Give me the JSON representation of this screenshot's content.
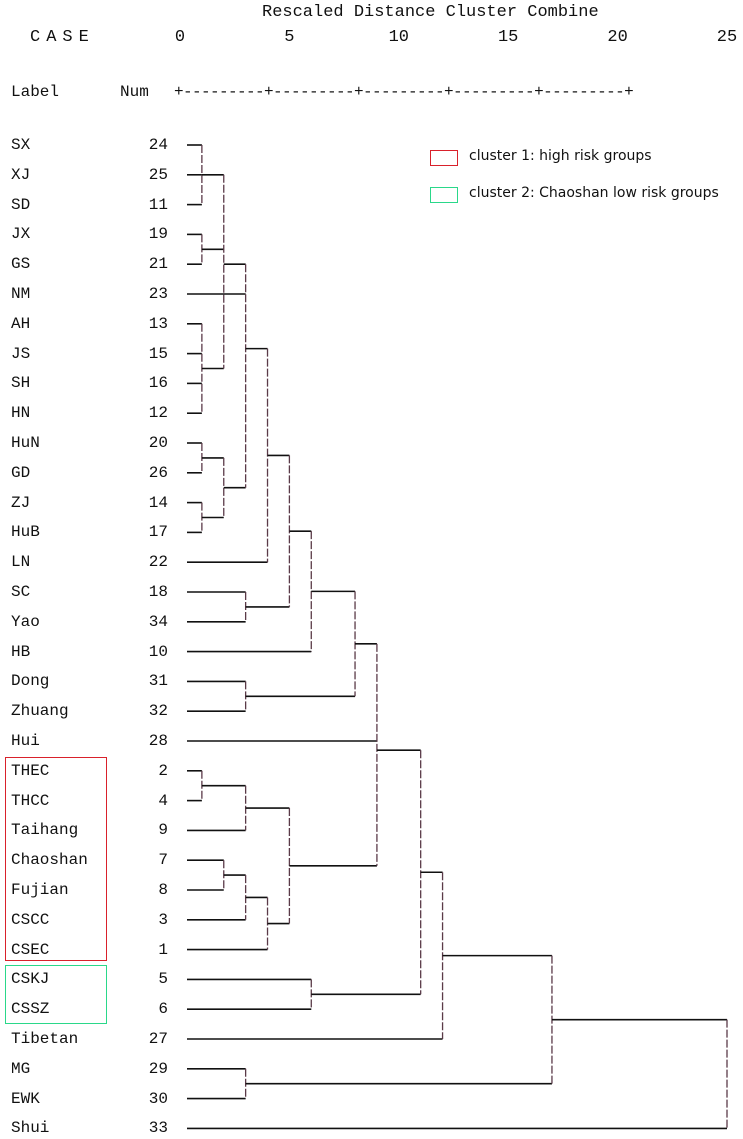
{
  "title": "Rescaled Distance Cluster Combine",
  "header": {
    "case": "CASE",
    "label": "Label",
    "num": "Num",
    "axis_rule": "+---------+---------+---------+---------+---------+"
  },
  "axis": {
    "ticks": [
      0,
      5,
      10,
      15,
      20,
      25
    ],
    "range": [
      0,
      25
    ]
  },
  "cases": [
    {
      "label": "SX",
      "num": "24"
    },
    {
      "label": "XJ",
      "num": "25"
    },
    {
      "label": "SD",
      "num": "11"
    },
    {
      "label": "JX",
      "num": "19"
    },
    {
      "label": "GS",
      "num": "21"
    },
    {
      "label": "NM",
      "num": "23"
    },
    {
      "label": "AH",
      "num": "13"
    },
    {
      "label": "JS",
      "num": "15"
    },
    {
      "label": "SH",
      "num": "16"
    },
    {
      "label": "HN",
      "num": "12"
    },
    {
      "label": "HuN",
      "num": "20"
    },
    {
      "label": "GD",
      "num": "26"
    },
    {
      "label": "ZJ",
      "num": "14"
    },
    {
      "label": "HuB",
      "num": "17"
    },
    {
      "label": "LN",
      "num": "22"
    },
    {
      "label": "SC",
      "num": "18"
    },
    {
      "label": "Yao",
      "num": "34"
    },
    {
      "label": "HB",
      "num": "10"
    },
    {
      "label": "Dong",
      "num": "31"
    },
    {
      "label": "Zhuang",
      "num": "32"
    },
    {
      "label": "Hui",
      "num": "28"
    },
    {
      "label": "THEC",
      "num": "2"
    },
    {
      "label": "THCC",
      "num": "4"
    },
    {
      "label": "Taihang",
      "num": "9"
    },
    {
      "label": "Chaoshan",
      "num": "7"
    },
    {
      "label": "Fujian",
      "num": "8"
    },
    {
      "label": "CSCC",
      "num": "3"
    },
    {
      "label": "CSEC",
      "num": "1"
    },
    {
      "label": "CSKJ",
      "num": "5"
    },
    {
      "label": "CSSZ",
      "num": "6"
    },
    {
      "label": "Tibetan",
      "num": "27"
    },
    {
      "label": "MG",
      "num": "29"
    },
    {
      "label": "EWK",
      "num": "30"
    },
    {
      "label": "Shui",
      "num": "33"
    }
  ],
  "tree": {
    "d": 25,
    "c": [
      {
        "d": 17,
        "c": [
          {
            "d": 12,
            "c": [
              {
                "d": 11,
                "c": [
                  {
                    "d": 9,
                    "c": [
                      {
                        "d": 8,
                        "c": [
                          {
                            "d": 6,
                            "c": [
                              {
                                "d": 5,
                                "c": [
                                  {
                                    "d": 4,
                                    "c": [
                                      {
                                        "d": 3,
                                        "c": [
                                          {
                                            "d": 2,
                                            "c": [
                                              {
                                                "d": 1,
                                                "c": [
                                                  0,
                                                  1,
                                                  2
                                                ]
                                              },
                                              {
                                                "d": 1,
                                                "c": [
                                                  3,
                                                  4
                                                ]
                                              },
                                              {
                                                "d": 1,
                                                "c": [
                                                  6,
                                                  7,
                                                  8,
                                                  9
                                                ]
                                              }
                                            ]
                                          },
                                          5,
                                          {
                                            "d": 2,
                                            "c": [
                                              {
                                                "d": 1,
                                                "c": [
                                                  10,
                                                  11
                                                ]
                                              },
                                              {
                                                "d": 1,
                                                "c": [
                                                  12,
                                                  13
                                                ]
                                              }
                                            ]
                                          }
                                        ]
                                      },
                                      14
                                    ]
                                  },
                                  {
                                    "d": 3,
                                    "c": [
                                      15,
                                      16
                                    ]
                                  }
                                ]
                              },
                              17
                            ]
                          },
                          {
                            "d": 3,
                            "c": [
                              18,
                              19
                            ]
                          }
                        ]
                      },
                      20,
                      {
                        "d": 5,
                        "c": [
                          {
                            "d": 3,
                            "c": [
                              {
                                "d": 1,
                                "c": [
                                  21,
                                  22
                                ]
                              },
                              23
                            ]
                          },
                          {
                            "d": 4,
                            "c": [
                              {
                                "d": 3,
                                "c": [
                                  {
                                    "d": 2,
                                    "c": [
                                      24,
                                      25
                                    ]
                                  },
                                  26
                                ]
                              },
                              27
                            ]
                          }
                        ]
                      }
                    ]
                  },
                  {
                    "d": 6,
                    "c": [
                      28,
                      29
                    ]
                  }
                ]
              },
              30
            ]
          },
          {
            "d": 3,
            "c": [
              31,
              32
            ]
          }
        ]
      },
      33
    ]
  },
  "legend": [
    {
      "text": "cluster 1: high risk groups",
      "color": "#d9212b"
    },
    {
      "text": "cluster 2: Chaoshan low risk groups",
      "color": "#2ad88a"
    }
  ]
}
